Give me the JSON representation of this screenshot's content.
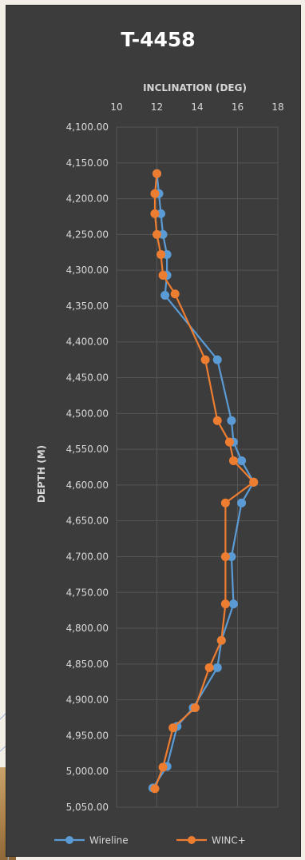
{
  "chart_data": {
    "type": "line",
    "title": "T-4458",
    "xlabel": "INCLINATION (DEG)",
    "ylabel": "DEPTH (M)",
    "x_axis_position": "top",
    "y_axis_reversed": true,
    "xlim": [
      10,
      18
    ],
    "ylim": [
      4100,
      5050
    ],
    "x_ticks": [
      "10",
      "12",
      "14",
      "16",
      "18"
    ],
    "y_ticks": [
      "4,100.00",
      "4,150.00",
      "4,200.00",
      "4,250.00",
      "4,300.00",
      "4,350.00",
      "4,400.00",
      "4,450.00",
      "4,500.00",
      "4,550.00",
      "4,600.00",
      "4,650.00",
      "4,700.00",
      "4,750.00",
      "4,800.00",
      "4,850.00",
      "4,900.00",
      "4,950.00",
      "5,000.00",
      "5,050.00"
    ],
    "grid": true,
    "legend_position": "bottom",
    "series": [
      {
        "name": "Wireline",
        "color": "#5b9bd5",
        "points": [
          {
            "x": 12.0,
            "y": 4165
          },
          {
            "x": 12.1,
            "y": 4193
          },
          {
            "x": 12.2,
            "y": 4221
          },
          {
            "x": 12.3,
            "y": 4250
          },
          {
            "x": 12.5,
            "y": 4278
          },
          {
            "x": 12.5,
            "y": 4307
          },
          {
            "x": 12.4,
            "y": 4335
          },
          {
            "x": 15.0,
            "y": 4425
          },
          {
            "x": 15.7,
            "y": 4510
          },
          {
            "x": 15.8,
            "y": 4540
          },
          {
            "x": 16.2,
            "y": 4566
          },
          {
            "x": 16.8,
            "y": 4596
          },
          {
            "x": 16.2,
            "y": 4625
          },
          {
            "x": 15.7,
            "y": 4700
          },
          {
            "x": 15.8,
            "y": 4766
          },
          {
            "x": 15.2,
            "y": 4817
          },
          {
            "x": 15.0,
            "y": 4855
          },
          {
            "x": 13.8,
            "y": 4911
          },
          {
            "x": 13.0,
            "y": 4937
          },
          {
            "x": 12.5,
            "y": 4993
          },
          {
            "x": 11.8,
            "y": 5023
          }
        ]
      },
      {
        "name": "WINC+",
        "color": "#ed7d31",
        "points": [
          {
            "x": 12.0,
            "y": 4165
          },
          {
            "x": 11.9,
            "y": 4193
          },
          {
            "x": 11.9,
            "y": 4221
          },
          {
            "x": 12.0,
            "y": 4250
          },
          {
            "x": 12.2,
            "y": 4278
          },
          {
            "x": 12.3,
            "y": 4307
          },
          {
            "x": 12.9,
            "y": 4333
          },
          {
            "x": 14.4,
            "y": 4425
          },
          {
            "x": 15.0,
            "y": 4510
          },
          {
            "x": 15.6,
            "y": 4540
          },
          {
            "x": 15.8,
            "y": 4566
          },
          {
            "x": 16.8,
            "y": 4596
          },
          {
            "x": 15.4,
            "y": 4625
          },
          {
            "x": 15.4,
            "y": 4700
          },
          {
            "x": 15.4,
            "y": 4766
          },
          {
            "x": 15.2,
            "y": 4817
          },
          {
            "x": 14.6,
            "y": 4855
          },
          {
            "x": 13.9,
            "y": 4911
          },
          {
            "x": 12.8,
            "y": 4939
          },
          {
            "x": 12.3,
            "y": 4994
          },
          {
            "x": 11.9,
            "y": 5024
          }
        ]
      }
    ]
  }
}
